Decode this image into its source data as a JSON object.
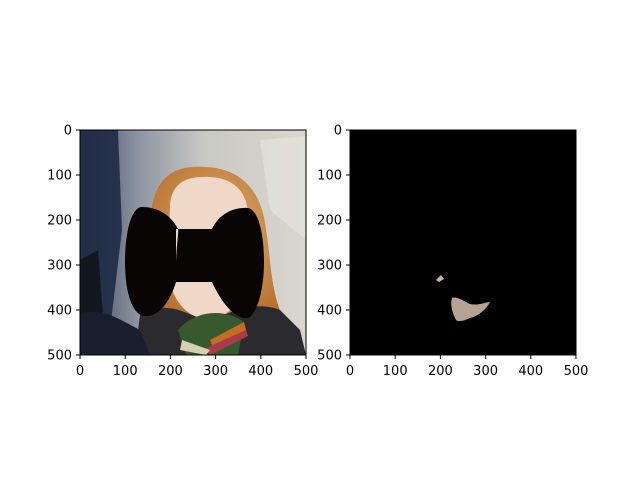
{
  "figure": {
    "background": "#ffffff",
    "panels": [
      {
        "id": "original-masked",
        "content": "photo of a smiling person with reddish-blond hair and a dark striped scarf; face covered by a black bow-tie-shaped mask",
        "mask_color": "#0a0505"
      },
      {
        "id": "segmentation-result",
        "content": "black background with a small skin-colored cutout region (chin/neck area) and a tiny speck",
        "background_color": "#000000",
        "region_color": "#b7a394"
      }
    ]
  },
  "chart_data": [
    {
      "type": "image",
      "xlim": [
        0,
        500
      ],
      "ylim": [
        500,
        0
      ],
      "xticks": [
        0,
        100,
        200,
        300,
        400,
        500
      ],
      "yticks": [
        0,
        100,
        200,
        300,
        400,
        500
      ],
      "x_tick_labels": [
        "0",
        "100",
        "200",
        "300",
        "400",
        "500"
      ],
      "y_tick_labels": [
        "0",
        "100",
        "200",
        "300",
        "400",
        "500"
      ]
    },
    {
      "type": "image",
      "xlim": [
        0,
        500
      ],
      "ylim": [
        500,
        0
      ],
      "xticks": [
        0,
        100,
        200,
        300,
        400,
        500
      ],
      "yticks": [
        0,
        100,
        200,
        300,
        400,
        500
      ],
      "x_tick_labels": [
        "0",
        "100",
        "200",
        "300",
        "400",
        "500"
      ],
      "y_tick_labels": [
        "0",
        "100",
        "200",
        "300",
        "400",
        "500"
      ]
    }
  ]
}
